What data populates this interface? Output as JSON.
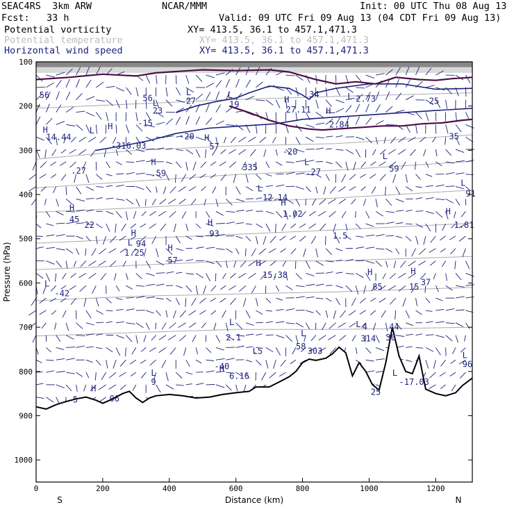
{
  "header": {
    "project": "SEAC4RS  3km ARW",
    "org": "NCAR/MMM",
    "init": "Init: 00 UTC Thu 08 Aug 13",
    "fcst": "Fcst:   33 h",
    "valid": "Valid: 09 UTC Fri 09 Aug 13 (04 CDT Fri 09 Aug 13)",
    "fields": [
      {
        "name": "Potential vorticity",
        "xy": "XY= 413.5, 36.1 to 457.1,471.3",
        "color": "#000000"
      },
      {
        "name": "Potential temperature",
        "xy": "XY= 413.5, 36.1 to 457.1,471.3",
        "color": "#bdbdbd"
      },
      {
        "name": "Horizontal wind speed",
        "xy": "XY= 413.5, 36.1 to 457.1,471.3",
        "color": "#1a1f7a"
      }
    ]
  },
  "chart_data": {
    "type": "cross-section",
    "xlabel": "Distance (km)",
    "ylabel": "Pressure (hPa)",
    "xlim": [
      0,
      1310
    ],
    "ylim": [
      1050,
      100
    ],
    "x_ticks": [
      0,
      200,
      400,
      600,
      800,
      1000,
      1200
    ],
    "y_ticks": [
      100,
      200,
      300,
      400,
      500,
      600,
      700,
      800,
      900,
      1000
    ],
    "x_end_labels": {
      "left": "S",
      "right": "N"
    },
    "colors": {
      "pv_positive": "#f6b6b6",
      "pv_high": "#2b2b2b",
      "pv_contour": "#4b0f45",
      "theta": "#aaaaaa",
      "wind": "#1a1f7a",
      "terrain": "#000000"
    },
    "terrain_surface_hPa": [
      [
        0,
        880
      ],
      [
        30,
        885
      ],
      [
        60,
        875
      ],
      [
        90,
        868
      ],
      [
        120,
        862
      ],
      [
        150,
        858
      ],
      [
        180,
        865
      ],
      [
        200,
        872
      ],
      [
        230,
        862
      ],
      [
        260,
        850
      ],
      [
        280,
        845
      ],
      [
        300,
        860
      ],
      [
        320,
        870
      ],
      [
        340,
        860
      ],
      [
        360,
        855
      ],
      [
        400,
        852
      ],
      [
        440,
        855
      ],
      [
        480,
        860
      ],
      [
        520,
        858
      ],
      [
        560,
        852
      ],
      [
        600,
        848
      ],
      [
        640,
        845
      ],
      [
        660,
        835
      ],
      [
        700,
        835
      ],
      [
        740,
        820
      ],
      [
        760,
        812
      ],
      [
        780,
        800
      ],
      [
        800,
        780
      ],
      [
        820,
        772
      ],
      [
        840,
        775
      ],
      [
        870,
        770
      ],
      [
        890,
        760
      ],
      [
        910,
        745
      ],
      [
        930,
        758
      ],
      [
        950,
        810
      ],
      [
        970,
        780
      ],
      [
        990,
        800
      ],
      [
        1010,
        830
      ],
      [
        1030,
        842
      ],
      [
        1050,
        780
      ],
      [
        1070,
        700
      ],
      [
        1090,
        765
      ],
      [
        1110,
        800
      ],
      [
        1130,
        805
      ],
      [
        1150,
        765
      ],
      [
        1170,
        840
      ],
      [
        1200,
        850
      ],
      [
        1230,
        855
      ],
      [
        1260,
        848
      ],
      [
        1280,
        832
      ],
      [
        1310,
        815
      ]
    ],
    "tropopause_contour_hPa": [
      [
        0,
        140
      ],
      [
        100,
        135
      ],
      [
        200,
        128
      ],
      [
        300,
        132
      ],
      [
        360,
        125
      ],
      [
        420,
        122
      ],
      [
        500,
        118
      ],
      [
        600,
        120
      ],
      [
        700,
        118
      ],
      [
        760,
        123
      ],
      [
        840,
        140
      ],
      [
        900,
        150
      ],
      [
        960,
        145
      ],
      [
        1020,
        150
      ],
      [
        1080,
        135
      ],
      [
        1150,
        140
      ],
      [
        1200,
        142
      ],
      [
        1250,
        138
      ],
      [
        1310,
        135
      ]
    ],
    "upper_pv_contour_hPa": [
      [
        580,
        200
      ],
      [
        640,
        215
      ],
      [
        700,
        232
      ],
      [
        760,
        245
      ],
      [
        820,
        252
      ],
      [
        860,
        254
      ],
      [
        900,
        252
      ],
      [
        940,
        250
      ],
      [
        980,
        248
      ],
      [
        1040,
        245
      ],
      [
        1100,
        245
      ],
      [
        1160,
        240
      ],
      [
        1220,
        238
      ],
      [
        1280,
        232
      ],
      [
        1310,
        230
      ]
    ],
    "theta_isentropes_hPa": [
      [
        [
          0,
          320
        ],
        [
          300,
          300
        ],
        [
          600,
          290
        ],
        [
          900,
          285
        ],
        [
          1310,
          265
        ]
      ],
      [
        [
          0,
          385
        ],
        [
          300,
          370
        ],
        [
          600,
          355
        ],
        [
          900,
          345
        ],
        [
          1310,
          325
        ]
      ],
      [
        [
          0,
          440
        ],
        [
          300,
          430
        ],
        [
          600,
          418
        ],
        [
          900,
          408
        ],
        [
          1310,
          390
        ]
      ],
      [
        [
          0,
          510
        ],
        [
          300,
          500
        ],
        [
          600,
          490
        ],
        [
          900,
          480
        ],
        [
          1310,
          465
        ]
      ],
      [
        [
          0,
          570
        ],
        [
          300,
          560
        ],
        [
          600,
          550
        ],
        [
          900,
          550
        ],
        [
          1310,
          540
        ]
      ],
      [
        [
          0,
          640
        ],
        [
          300,
          630
        ],
        [
          600,
          625
        ],
        [
          900,
          620
        ],
        [
          1310,
          610
        ]
      ],
      [
        [
          0,
          720
        ],
        [
          300,
          712
        ],
        [
          600,
          705
        ],
        [
          900,
          705
        ],
        [
          1310,
          700
        ]
      ],
      [
        [
          0,
          205
        ],
        [
          300,
          195
        ],
        [
          600,
          185
        ],
        [
          900,
          178
        ],
        [
          1310,
          170
        ]
      ]
    ],
    "wind_speed_contours_hPa": [
      [
        [
          180,
          300
        ],
        [
          260,
          290
        ],
        [
          340,
          278
        ],
        [
          420,
          262
        ],
        [
          520,
          250
        ],
        [
          620,
          245
        ],
        [
          720,
          240
        ],
        [
          800,
          230
        ],
        [
          900,
          225
        ],
        [
          1000,
          220
        ],
        [
          1100,
          215
        ],
        [
          1200,
          210
        ],
        [
          1310,
          205
        ]
      ],
      [
        [
          420,
          215
        ],
        [
          480,
          200
        ],
        [
          540,
          190
        ],
        [
          600,
          182
        ],
        [
          640,
          170
        ],
        [
          700,
          155
        ],
        [
          760,
          160
        ],
        [
          800,
          175
        ],
        [
          820,
          185
        ],
        [
          840,
          170
        ],
        [
          900,
          160
        ],
        [
          1000,
          150
        ],
        [
          1100,
          150
        ],
        [
          1200,
          162
        ],
        [
          1310,
          160
        ]
      ]
    ],
    "pv_patches_hPa": [
      [
        40,
        620,
        760
      ],
      [
        70,
        600,
        800
      ],
      [
        110,
        640,
        780
      ],
      [
        150,
        600,
        720
      ],
      [
        200,
        650,
        800
      ],
      [
        280,
        720,
        830
      ],
      [
        320,
        520,
        560
      ],
      [
        350,
        600,
        690
      ],
      [
        380,
        560,
        640
      ],
      [
        410,
        520,
        600
      ],
      [
        440,
        580,
        700
      ],
      [
        460,
        760,
        840
      ],
      [
        520,
        700,
        780
      ],
      [
        560,
        650,
        700
      ],
      [
        600,
        720,
        790
      ],
      [
        660,
        700,
        760
      ],
      [
        700,
        690,
        760
      ],
      [
        760,
        720,
        780
      ],
      [
        800,
        690,
        760
      ],
      [
        880,
        600,
        650
      ],
      [
        920,
        560,
        620
      ],
      [
        1000,
        700,
        780
      ],
      [
        1040,
        650,
        760
      ],
      [
        1060,
        540,
        620
      ],
      [
        1100,
        520,
        600
      ],
      [
        1150,
        600,
        700
      ],
      [
        1190,
        700,
        790
      ],
      [
        1240,
        660,
        760
      ],
      [
        1290,
        600,
        700
      ],
      [
        1170,
        330,
        390
      ],
      [
        1230,
        310,
        360
      ],
      [
        1280,
        300,
        340
      ],
      [
        560,
        360,
        380
      ],
      [
        140,
        380,
        400
      ]
    ],
    "annotations": [
      {
        "text": "56",
        "x": 10,
        "p": 182
      },
      {
        "text": "H",
        "x": 20,
        "p": 260
      },
      {
        "text": "14.44",
        "x": 30,
        "p": 277
      },
      {
        "text": "L",
        "x": 160,
        "p": 262
      },
      {
        "text": "H",
        "x": 215,
        "p": 252
      },
      {
        "text": "-316.03",
        "x": 225,
        "p": 296
      },
      {
        "text": ".27",
        "x": 105,
        "p": 353
      },
      {
        "text": "H",
        "x": 100,
        "p": 437
      },
      {
        "text": "45",
        "x": 100,
        "p": 463
      },
      {
        "text": "22",
        "x": 145,
        "p": 475
      },
      {
        "text": "L",
        "x": 25,
        "p": 608
      },
      {
        "text": "-42",
        "x": 55,
        "p": 630
      },
      {
        "text": "H",
        "x": 285,
        "p": 493
      },
      {
        "text": "L",
        "x": 275,
        "p": 515
      },
      {
        "text": "94",
        "x": 300,
        "p": 518
      },
      {
        "text": "1.25",
        "x": 265,
        "p": 538
      },
      {
        "text": "H",
        "x": 395,
        "p": 527
      },
      {
        "text": "57",
        "x": 395,
        "p": 555
      },
      {
        "text": "H",
        "x": 345,
        "p": 333
      },
      {
        "text": ".59",
        "x": 345,
        "p": 358
      },
      {
        "text": "56",
        "x": 320,
        "p": 189
      },
      {
        "text": "L",
        "x": 350,
        "p": 200
      },
      {
        "text": "23",
        "x": 350,
        "p": 217
      },
      {
        "text": "-15",
        "x": 305,
        "p": 245
      },
      {
        "text": "L",
        "x": 450,
        "p": 175
      },
      {
        "text": "27",
        "x": 450,
        "p": 195
      },
      {
        "text": "-20",
        "x": 430,
        "p": 275
      },
      {
        "text": "H",
        "x": 505,
        "p": 278
      },
      {
        "text": "57",
        "x": 520,
        "p": 298
      },
      {
        "text": "L",
        "x": 575,
        "p": 182
      },
      {
        "text": "19",
        "x": 580,
        "p": 203
      },
      {
        "text": "H",
        "x": 515,
        "p": 470
      },
      {
        "text": "93",
        "x": 520,
        "p": 495
      },
      {
        "text": "335",
        "x": 620,
        "p": 345
      },
      {
        "text": "L",
        "x": 665,
        "p": 393
      },
      {
        "text": "12.14",
        "x": 680,
        "p": 413
      },
      {
        "text": "H",
        "x": 735,
        "p": 425
      },
      {
        "text": "1.02",
        "x": 740,
        "p": 450
      },
      {
        "text": "H",
        "x": 660,
        "p": 562
      },
      {
        "text": "15.38",
        "x": 680,
        "p": 588
      },
      {
        "text": "L",
        "x": 580,
        "p": 695
      },
      {
        "text": "2.1",
        "x": 570,
        "p": 730
      },
      {
        "text": "L",
        "x": 650,
        "p": 760
      },
      {
        "text": ".5",
        "x": 650,
        "p": 760
      },
      {
        "text": "-40",
        "x": 535,
        "p": 795
      },
      {
        "text": "H",
        "x": 550,
        "p": 800
      },
      {
        "text": "6.16",
        "x": 580,
        "p": 817
      },
      {
        "text": "-20",
        "x": 740,
        "p": 310
      },
      {
        "text": "H",
        "x": 745,
        "p": 192
      },
      {
        "text": "27.11",
        "x": 750,
        "p": 215
      },
      {
        "text": "L",
        "x": 805,
        "p": 333
      },
      {
        "text": ".27",
        "x": 810,
        "p": 355
      },
      {
        "text": "34",
        "x": 820,
        "p": 180
      },
      {
        "text": "H",
        "x": 870,
        "p": 218
      },
      {
        "text": "2.84",
        "x": 880,
        "p": 248
      },
      {
        "text": "L",
        "x": 935,
        "p": 185
      },
      {
        "text": "2.73",
        "x": 960,
        "p": 190
      },
      {
        "text": "L",
        "x": 1040,
        "p": 320
      },
      {
        "text": "59",
        "x": 1060,
        "p": 348
      },
      {
        "text": "25",
        "x": 1180,
        "p": 195
      },
      {
        "text": "35",
        "x": 1240,
        "p": 275
      },
      {
        "text": "L",
        "x": 1275,
        "p": 380
      },
      {
        "text": "91",
        "x": 1290,
        "p": 405
      },
      {
        "text": "H",
        "x": 1230,
        "p": 445
      },
      {
        "text": "1.81",
        "x": 1255,
        "p": 475
      },
      {
        "text": "1.5",
        "x": 890,
        "p": 500
      },
      {
        "text": "H",
        "x": 995,
        "p": 582
      },
      {
        "text": "85",
        "x": 1010,
        "p": 615
      },
      {
        "text": "15",
        "x": 1120,
        "p": 615
      },
      {
        "text": "37",
        "x": 1155,
        "p": 605
      },
      {
        "text": "H",
        "x": 1125,
        "p": 580
      },
      {
        "text": "L",
        "x": 795,
        "p": 720
      },
      {
        "text": "58",
        "x": 780,
        "p": 750
      },
      {
        "text": "303",
        "x": 815,
        "p": 760
      },
      {
        "text": "L",
        "x": 960,
        "p": 700
      },
      {
        "text": "4",
        "x": 980,
        "p": 705
      },
      {
        "text": "314",
        "x": 975,
        "p": 732
      },
      {
        "text": "30",
        "x": 1050,
        "p": 730
      },
      {
        "text": "44",
        "x": 1060,
        "p": 705
      },
      {
        "text": "L",
        "x": 1070,
        "p": 810
      },
      {
        "text": "-17.03",
        "x": 1090,
        "p": 830
      },
      {
        "text": "25",
        "x": 1005,
        "p": 853
      },
      {
        "text": "L",
        "x": 1280,
        "p": 770
      },
      {
        "text": "96",
        "x": 1280,
        "p": 790
      },
      {
        "text": "L",
        "x": 345,
        "p": 810
      },
      {
        "text": "9",
        "x": 345,
        "p": 830
      },
      {
        "text": "H",
        "x": 165,
        "p": 845
      },
      {
        "text": "06",
        "x": 220,
        "p": 868
      },
      {
        "text": "5",
        "x": 110,
        "p": 870
      }
    ]
  }
}
